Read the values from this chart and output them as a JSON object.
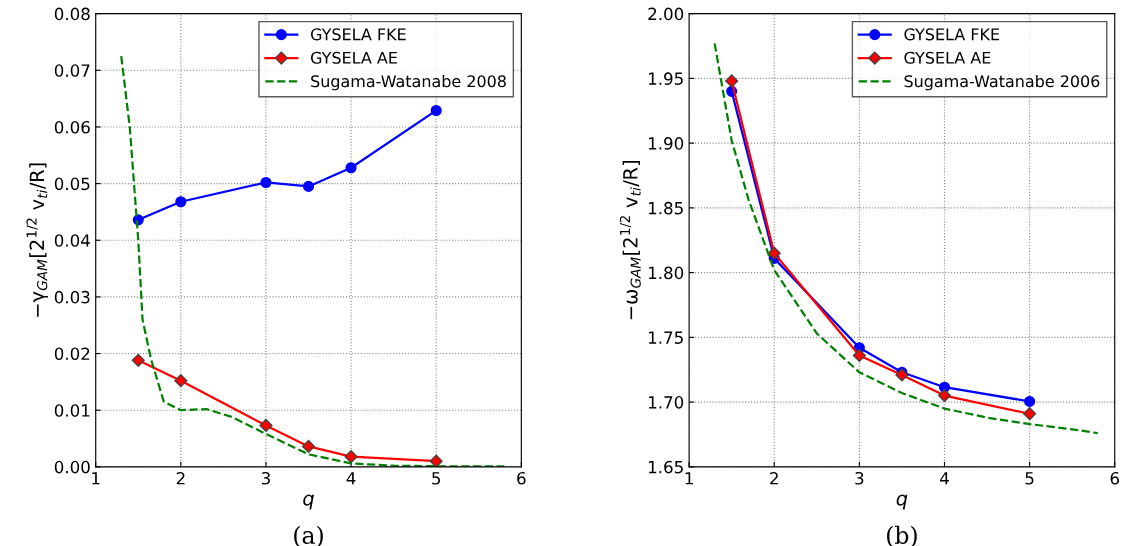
{
  "chart_data": [
    {
      "type": "line",
      "xlabel": "q",
      "ylabel": "−γ$_{GAM}$[2$^{1/2}$ v$_{ti}$/R]",
      "annotations": [
        "(a)"
      ],
      "xlim": [
        1,
        6
      ],
      "xticks": [
        1,
        2,
        3,
        4,
        5,
        6
      ],
      "ylim": [
        0.0,
        0.08
      ],
      "yticks": [
        {
          "value": 0,
          "label": "0.00"
        },
        0.01,
        0.02,
        0.03,
        0.04,
        0.05,
        0.06,
        0.07,
        0.08
      ],
      "grid": true,
      "legend": "top right",
      "series": [
        {
          "name": "GYSELA FKE",
          "color": "#0000ff",
          "marker": "circle",
          "line_style": "solid",
          "x": [
            1.5,
            2,
            3,
            3.5,
            4,
            5
          ],
          "values": [
            0.0436,
            0.0468,
            0.0502,
            0.0495,
            0.0528,
            0.0629
          ]
        },
        {
          "name": "GYSELA AE",
          "color": "#ff0000",
          "marker": "diamond",
          "line_style": "solid",
          "x": [
            1.5,
            2,
            3,
            3.5,
            4,
            5
          ],
          "values": [
            0.0188,
            0.0152,
            0.0073,
            0.0036,
            0.0018,
            0.001
          ]
        },
        {
          "name": "Sugama-Watanabe 2008",
          "color": "#008000",
          "marker": "none",
          "line_style": "dashed",
          "x": [
            1.3,
            1.4,
            1.5,
            1.55,
            1.65,
            1.8,
            2.0,
            2.3,
            2.6,
            3.0,
            3.5,
            4.0,
            4.5,
            5.0,
            5.8
          ],
          "values": [
            0.0725,
            0.06,
            0.04,
            0.026,
            0.019,
            0.0115,
            0.01,
            0.0102,
            0.0088,
            0.0058,
            0.0022,
            0.0006,
            0.0002,
            0.0001,
            0.0001
          ]
        }
      ]
    },
    {
      "type": "line",
      "xlabel": "q",
      "ylabel": "−ω$_{GAM}$[2$^{1/2}$ v$_{ti}$/R]",
      "annotations": [
        "(b)"
      ],
      "xlim": [
        1,
        6
      ],
      "xticks": [
        1,
        2,
        3,
        4,
        5,
        6
      ],
      "ylim": [
        1.65,
        2.0
      ],
      "yticks": [
        1.65,
        {
          "value": 1.7,
          "label": "1.70"
        },
        1.75,
        {
          "value": 1.8,
          "label": "1.80"
        },
        1.85,
        {
          "value": 1.9,
          "label": "1.90"
        },
        1.95,
        {
          "value": 2.0,
          "label": "2.00"
        }
      ],
      "grid": true,
      "legend": "top right",
      "series": [
        {
          "name": "GYSELA FKE",
          "color": "#0000ff",
          "marker": "circle",
          "line_style": "solid",
          "x": [
            1.5,
            2,
            3,
            3.5,
            4,
            5
          ],
          "values": [
            1.94,
            1.811,
            1.742,
            1.723,
            1.7115,
            1.7005
          ]
        },
        {
          "name": "GYSELA AE",
          "color": "#ff0000",
          "marker": "diamond",
          "line_style": "solid",
          "x": [
            1.5,
            2,
            3,
            3.5,
            4,
            5
          ],
          "values": [
            1.948,
            1.815,
            1.736,
            1.721,
            1.705,
            1.691
          ]
        },
        {
          "name": "Sugama-Watanabe 2006",
          "color": "#008000",
          "marker": "none",
          "line_style": "dashed",
          "x": [
            1.3,
            1.5,
            1.7,
            2.0,
            2.5,
            3.0,
            3.5,
            4.0,
            4.5,
            5.0,
            5.5,
            5.8
          ],
          "values": [
            1.977,
            1.902,
            1.856,
            1.802,
            1.753,
            1.723,
            1.707,
            1.695,
            1.688,
            1.683,
            1.679,
            1.676
          ]
        }
      ]
    }
  ]
}
